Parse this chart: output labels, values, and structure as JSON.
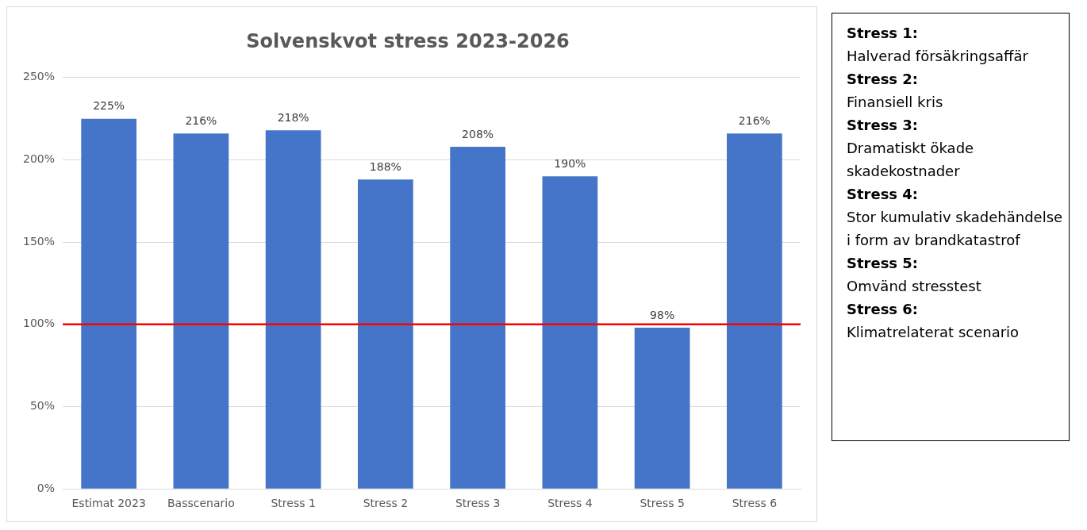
{
  "chart_data": [
    {
      "type": "bar",
      "title": "Solvenskvot stress 2023-2026",
      "categories": [
        "Estimat 2023",
        "Basscenario",
        "Stress 1",
        "Stress 2",
        "Stress 3",
        "Stress 4",
        "Stress 5",
        "Stress 6"
      ],
      "values": [
        225,
        216,
        218,
        188,
        208,
        190,
        98,
        216
      ],
      "value_labels": [
        "225%",
        "216%",
        "218%",
        "188%",
        "208%",
        "190%",
        "98%",
        "216%"
      ],
      "color": "#4575c9",
      "ylim": [
        0,
        250
      ],
      "yticks": [
        {
          "value": 0,
          "label": "0%"
        },
        {
          "value": 50,
          "label": "50%"
        },
        {
          "value": 100,
          "label": "100%"
        },
        {
          "value": 150,
          "label": "150%"
        },
        {
          "value": 200,
          "label": "200%"
        },
        {
          "value": 250,
          "label": "250%"
        }
      ],
      "grid": "y",
      "ref_lines": [
        {
          "axis": "y",
          "value": 100,
          "color": "#ff0000"
        }
      ]
    },
    {
      "type": "other",
      "annotations": [
        "Stress 1:",
        "Halverad försäkringsaffär",
        "Stress 2:",
        "Finansiell kris",
        "Stress 3:",
        "Dramatiskt ökade skadekostnader",
        "Stress 4:",
        "Stor kumulativ skadehändelse i form av brandkatastrof",
        "Stress 5:",
        "Omvänd stresstest",
        "Stress 6:",
        "Klimatrelaterat scenario"
      ]
    }
  ]
}
